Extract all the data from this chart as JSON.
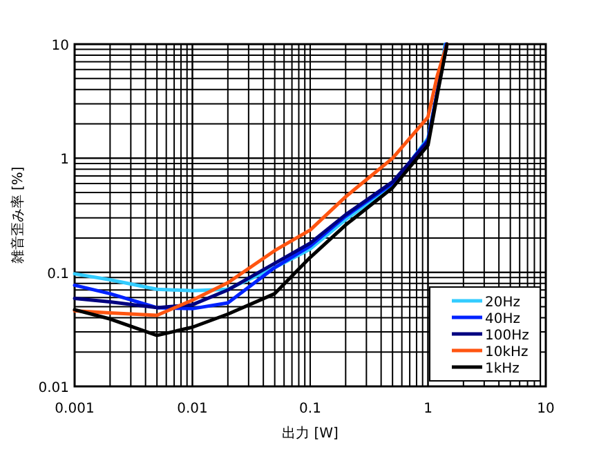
{
  "chart_data": {
    "type": "line",
    "xlabel": "出力 [W]",
    "ylabel": "雑音歪み率 [%]",
    "log": "xy",
    "xlim": [
      0.001,
      10
    ],
    "ylim": [
      0.01,
      10
    ],
    "xticks": [
      0.001,
      0.01,
      0.1,
      1,
      10
    ],
    "yticks": [
      0.01,
      0.1,
      1,
      10
    ],
    "grid": true,
    "legend": "bottom right",
    "marker": "none",
    "line_style": "solid",
    "x": [
      0.001,
      0.002,
      0.005,
      0.01,
      0.02,
      0.05,
      0.1,
      0.2,
      0.5,
      1,
      1.2,
      1.45
    ],
    "series": [
      {
        "name": "20Hz",
        "color": "#33ccff",
        "x": [
          0.001,
          0.002,
          0.005,
          0.01,
          0.02,
          0.05,
          0.1,
          0.2,
          0.5,
          1,
          1.2,
          1.4
        ],
        "values": [
          0.097,
          0.086,
          0.071,
          0.069,
          0.071,
          0.11,
          0.16,
          0.29,
          0.58,
          1.5,
          3.8,
          10
        ]
      },
      {
        "name": "40Hz",
        "color": "#0022ff",
        "x": [
          0.001,
          0.002,
          0.005,
          0.01,
          0.02,
          0.05,
          0.1,
          0.2,
          0.5,
          1,
          1.2,
          1.42
        ],
        "values": [
          0.077,
          0.065,
          0.049,
          0.048,
          0.054,
          0.11,
          0.17,
          0.31,
          0.6,
          1.45,
          3.8,
          10
        ]
      },
      {
        "name": "100Hz",
        "color": "#000080",
        "values": [
          0.059,
          0.055,
          0.049,
          0.052,
          0.07,
          0.12,
          0.18,
          0.32,
          0.62,
          1.4,
          3.8,
          10
        ]
      },
      {
        "name": "10kHz",
        "color": "#ff5511",
        "values": [
          0.046,
          0.044,
          0.042,
          0.057,
          0.081,
          0.155,
          0.235,
          0.46,
          1.0,
          2.3,
          5.3,
          10
        ]
      },
      {
        "name": "1kHz",
        "color": "#000000",
        "values": [
          0.047,
          0.039,
          0.028,
          0.033,
          0.043,
          0.065,
          0.135,
          0.26,
          0.55,
          1.3,
          3.6,
          10
        ]
      }
    ]
  }
}
